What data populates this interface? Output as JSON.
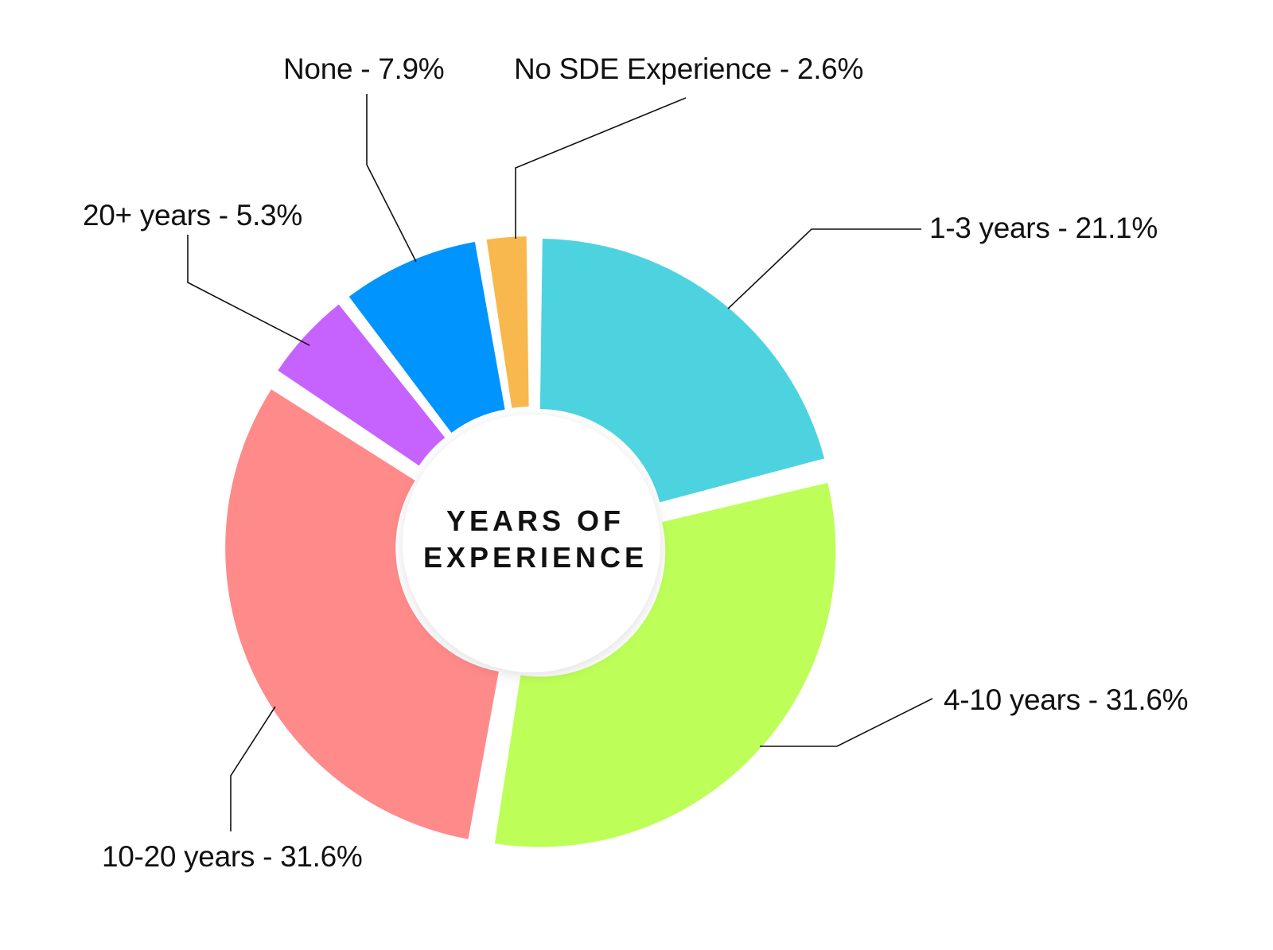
{
  "chart_data": {
    "type": "pie",
    "variant": "exploded-donut",
    "title": "YEARS OF EXPERIENCE",
    "center_label_lines": [
      "YEARS OF",
      "EXPERIENCE"
    ],
    "categories": [
      "1-3 years",
      "4-10 years",
      "10-20 years",
      "20+ years",
      "None",
      "No SDE Experience"
    ],
    "values": [
      21.1,
      31.6,
      31.6,
      5.3,
      7.9,
      2.6
    ],
    "unit": "%",
    "colors": [
      "#4DD3E0",
      "#BDFF58",
      "#FF8A8A",
      "#C663FF",
      "#0094FF",
      "#F8B84E"
    ],
    "start_angle_deg": 0,
    "direction": "clockwise",
    "legend": "callout-labels"
  },
  "labels": [
    {
      "text": "1-3 years - 21.1%"
    },
    {
      "text": "4-10 years - 31.6%"
    },
    {
      "text": "10-20 years - 31.6%"
    },
    {
      "text": "20+ years - 5.3%"
    },
    {
      "text": "None - 7.9%"
    },
    {
      "text": "No SDE Experience - 2.6%"
    }
  ]
}
